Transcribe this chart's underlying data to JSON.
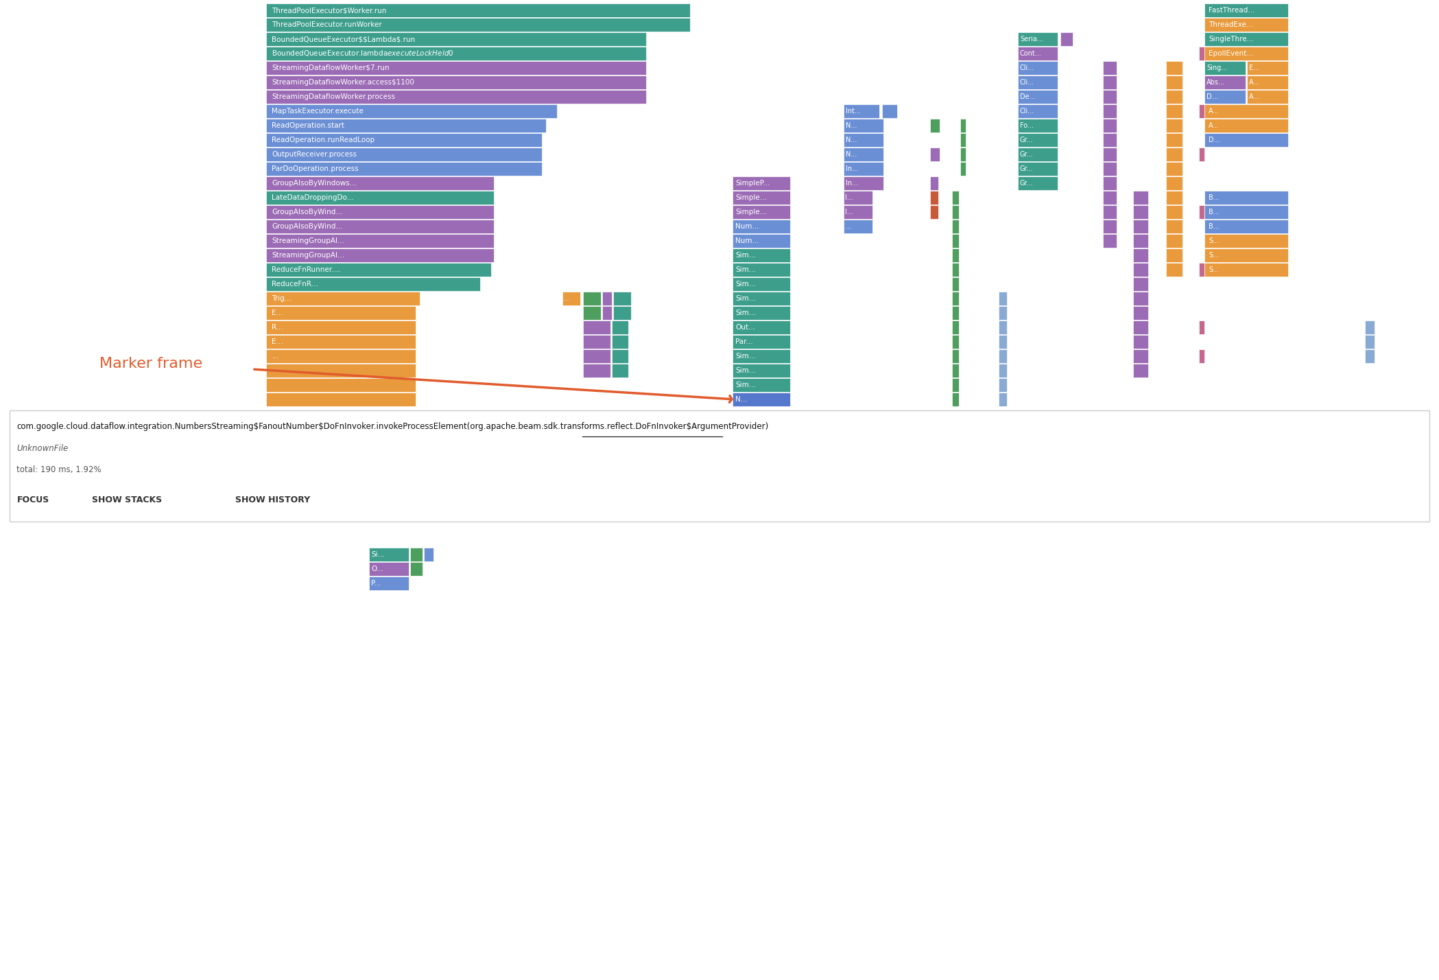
{
  "bg_color": "#ffffff",
  "figsize": [
    20.98,
    14.28
  ],
  "dpi": 100,
  "info_text": "com.google.cloud.dataflow.integration.NumbersStreaming$FanoutNumber$DoFnInvoker.invokeProcessElement(org.apache.beam.sdk.transforms.reflect.DoFnInvoker$ArgumentProvider)",
  "info_file": "UnknownFile",
  "info_total": "total: 190 ms, 1.92%",
  "focus_label": "FOCUS",
  "stacks_label": "SHOW STACKS",
  "history_label": "SHOW HISTORY",
  "marker_frame_text": "Marker frame",
  "note": "All x/y/w/h in figure fraction coords (0-1). Figure is 2098x1428px. Flame rows go top-down starting at y_top=0.975. Each row: h=0.026, gap=0.002. Left edge of main stack at x=0.186, right at ~0.76"
}
